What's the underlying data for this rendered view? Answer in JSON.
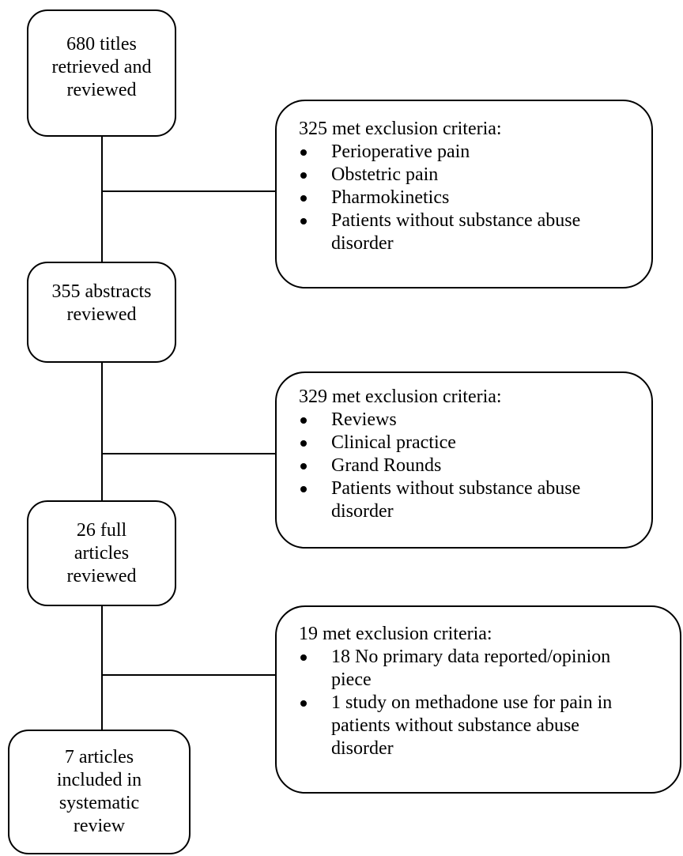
{
  "steps": [
    {
      "lines": [
        "680 titles",
        "retrieved and",
        "reviewed"
      ]
    },
    {
      "lines": [
        "355 abstracts",
        "reviewed"
      ]
    },
    {
      "lines": [
        "26 full",
        "articles",
        "reviewed"
      ]
    },
    {
      "lines": [
        "7 articles",
        "included in",
        "systematic",
        "review"
      ]
    }
  ],
  "exclusions": [
    {
      "title": "325 met exclusion criteria:",
      "items": [
        [
          "Perioperative pain"
        ],
        [
          "Obstetric pain"
        ],
        [
          "Pharmokinetics"
        ],
        [
          "Patients without substance abuse",
          "disorder"
        ]
      ]
    },
    {
      "title": "329 met exclusion criteria:",
      "items": [
        [
          "Reviews"
        ],
        [
          "Clinical practice"
        ],
        [
          "Grand Rounds"
        ],
        [
          "Patients without substance abuse",
          "disorder"
        ]
      ]
    },
    {
      "title": "19 met exclusion criteria:",
      "items": [
        [
          "18 No primary data reported/opinion",
          "piece"
        ],
        [
          "1 study on methadone use for pain in",
          "patients without substance abuse",
          "disorder"
        ]
      ]
    }
  ]
}
